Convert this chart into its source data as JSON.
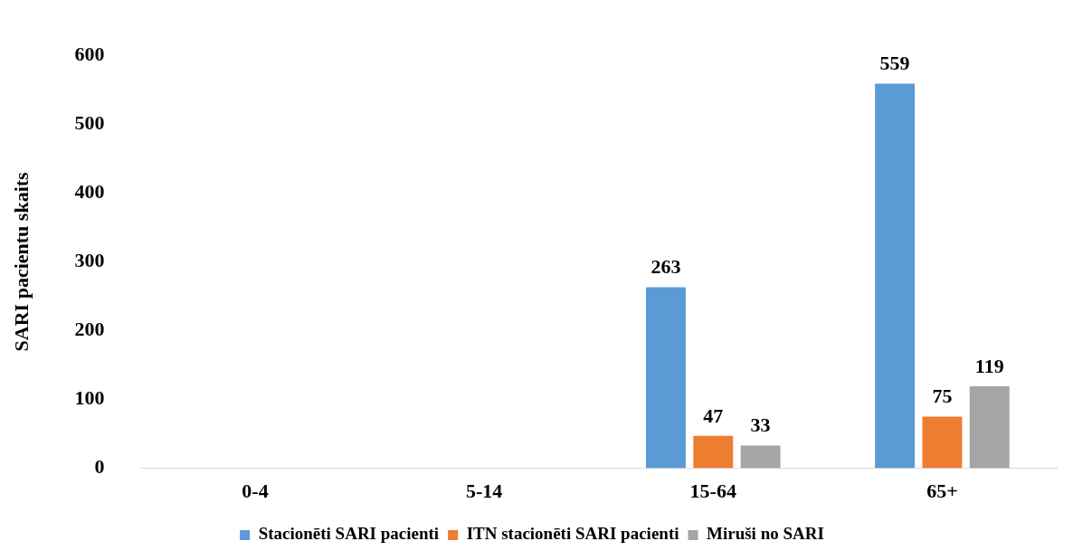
{
  "chart_data": {
    "type": "bar",
    "ylabel": "SARI pacientu skaits",
    "categories": [
      "0-4",
      "5-14",
      "15-64",
      "65+"
    ],
    "series": [
      {
        "name": "Stacionēti SARI pacienti",
        "color": "#5b9bd5",
        "values": [
          null,
          null,
          263,
          559
        ]
      },
      {
        "name": "ITN stacionēti SARI pacienti",
        "color": "#ed7d31",
        "values": [
          null,
          null,
          47,
          75
        ]
      },
      {
        "name": "Miruši no SARI",
        "color": "#a5a5a5",
        "values": [
          null,
          null,
          33,
          119
        ]
      }
    ],
    "ylim": [
      0,
      600
    ],
    "yticks": [
      0,
      100,
      200,
      300,
      400,
      500,
      600
    ],
    "grid": false,
    "legend": "bottom",
    "data_labels": true
  }
}
